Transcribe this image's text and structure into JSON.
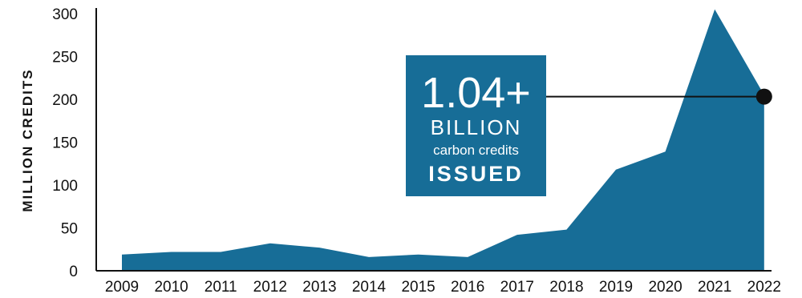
{
  "chart_data": {
    "type": "area",
    "title": "",
    "xlabel": "",
    "ylabel": "MILLION CREDITS",
    "x": [
      "2009",
      "2010",
      "2011",
      "2012",
      "2013",
      "2014",
      "2015",
      "2016",
      "2017",
      "2018",
      "2019",
      "2020",
      "2021",
      "2022"
    ],
    "series": [
      {
        "values": [
          19,
          22,
          22,
          32,
          27,
          16,
          19,
          16,
          42,
          48,
          118,
          139,
          305,
          205
        ]
      }
    ],
    "ylim": [
      0,
      305
    ],
    "yticks": [
      "0",
      "50",
      "100",
      "150",
      "200",
      "250",
      "300"
    ],
    "grid": false,
    "legend": "none",
    "colors": {
      "area": "#176d97",
      "callout_bg": "#176d97",
      "axis": "#111111",
      "leader": "#111111"
    },
    "annotation": {
      "line1": "1.04+",
      "line2": "BILLION",
      "line3": "carbon credits",
      "line4": "ISSUED",
      "target_x": "2022"
    }
  }
}
